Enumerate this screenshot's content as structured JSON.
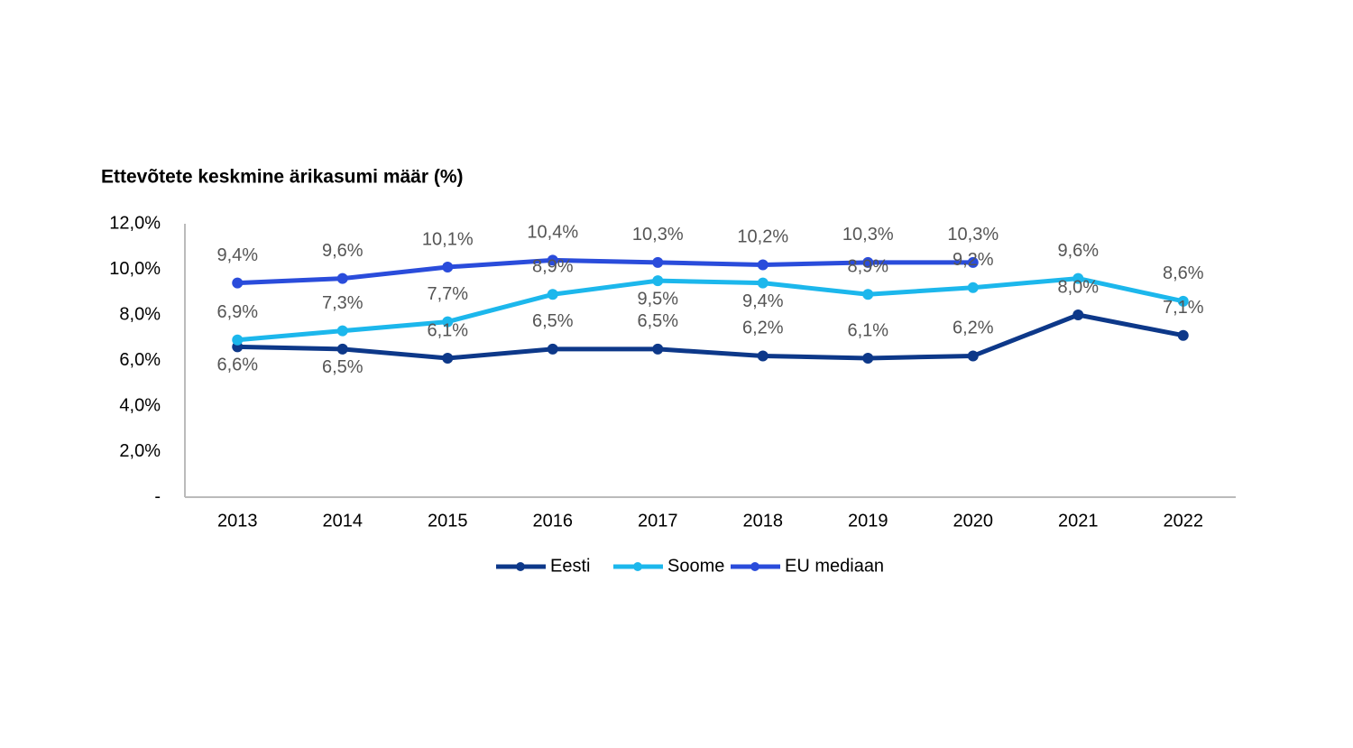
{
  "chart_data": {
    "type": "line",
    "title": "Ettevõtete keskmine ärikasumi määr (%)",
    "categories": [
      "2013",
      "2014",
      "2015",
      "2016",
      "2017",
      "2018",
      "2019",
      "2020",
      "2021",
      "2022"
    ],
    "series": [
      {
        "name": "Eesti",
        "color": "#0d3889",
        "values": [
          6.6,
          6.5,
          6.1,
          6.5,
          6.5,
          6.2,
          6.1,
          6.2,
          8.0,
          7.1
        ],
        "value_labels": [
          "6,6%",
          "6,5%",
          "6,1%",
          "6,5%",
          "6,5%",
          "6,2%",
          "6,1%",
          "6,2%",
          "8,0%",
          "7,1%"
        ]
      },
      {
        "name": "Soome",
        "color": "#1cb7ec",
        "values": [
          6.9,
          7.3,
          7.7,
          8.9,
          9.5,
          9.4,
          8.9,
          9.2,
          9.6,
          8.6
        ],
        "value_labels": [
          "6,9%",
          "7,3%",
          "7,7%",
          "8,9%",
          "9,5%",
          "9,4%",
          "8,9%",
          "9,2%",
          "9,6%",
          "8,6%"
        ]
      },
      {
        "name": "EU mediaan",
        "color": "#2a4cdb",
        "values": [
          9.4,
          9.6,
          10.1,
          10.4,
          10.3,
          10.2,
          10.3,
          10.3,
          null,
          null
        ],
        "value_labels": [
          "9,4%",
          "9,6%",
          "10,1%",
          "10,4%",
          "10,3%",
          "10,2%",
          "10,3%",
          "10,3%",
          null,
          null
        ]
      }
    ],
    "ylim": [
      0,
      12
    ],
    "yticks": [
      {
        "value": 0,
        "label": "-"
      },
      {
        "value": 2,
        "label": "2,0%"
      },
      {
        "value": 4,
        "label": "4,0%"
      },
      {
        "value": 6,
        "label": "6,0%"
      },
      {
        "value": 8,
        "label": "8,0%"
      },
      {
        "value": 10,
        "label": "10,0%"
      },
      {
        "value": 12,
        "label": "12,0%"
      }
    ],
    "legend": "bottom"
  }
}
